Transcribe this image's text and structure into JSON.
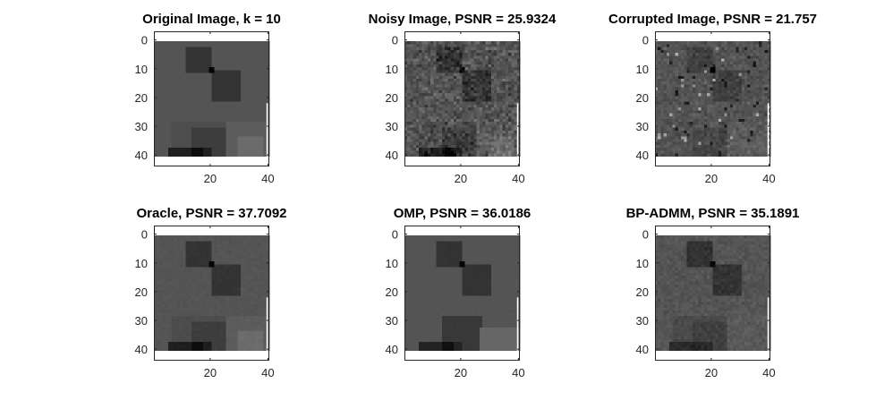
{
  "figure": {
    "background": "#ffffff",
    "colormap": "gray",
    "frame_color": "#262626"
  },
  "chart_data": [
    {
      "type": "heatmap",
      "id": "original",
      "title": "Original Image, k = 10",
      "xlim": [
        0.5,
        40.5
      ],
      "ylim": [
        -3,
        44
      ],
      "xticks": [
        20,
        40
      ],
      "yticks": [
        0,
        10,
        20,
        30,
        40
      ],
      "image_extent": [
        1,
        40,
        1,
        40
      ],
      "base_gray": 0.33,
      "blocks": [
        {
          "x": [
            12,
            20
          ],
          "y": [
            3,
            11
          ],
          "gray": 0.2
        },
        {
          "x": [
            21,
            30
          ],
          "y": [
            11,
            21
          ],
          "gray": 0.2
        },
        {
          "x": [
            7,
            27
          ],
          "y": [
            29,
            40
          ],
          "gray": 0.3
        },
        {
          "x": [
            14,
            30
          ],
          "y": [
            31,
            40
          ],
          "gray": 0.24
        },
        {
          "x": [
            26,
            40
          ],
          "y": [
            29,
            40
          ],
          "gray": 0.36
        },
        {
          "x": [
            30,
            38
          ],
          "y": [
            34,
            40
          ],
          "gray": 0.42
        },
        {
          "x": [
            6,
            20
          ],
          "y": [
            38,
            40
          ],
          "gray": 0.12
        },
        {
          "x": [
            14,
            17
          ],
          "y": [
            38,
            40
          ],
          "gray": 0.05
        },
        {
          "x": [
            20,
            21
          ],
          "y": [
            10,
            11
          ],
          "gray": 0.02
        }
      ],
      "noise": 0.0,
      "corruption": false
    },
    {
      "type": "heatmap",
      "id": "noisy",
      "title": "Noisy Image, PSNR = 25.9324",
      "xlim": [
        0.5,
        40.5
      ],
      "ylim": [
        -3,
        44
      ],
      "xticks": [
        20,
        40
      ],
      "yticks": [
        0,
        10,
        20,
        30,
        40
      ],
      "image_extent": [
        1,
        40,
        1,
        40
      ],
      "base_gray": 0.33,
      "blocks": [
        {
          "x": [
            12,
            20
          ],
          "y": [
            3,
            11
          ],
          "gray": 0.2
        },
        {
          "x": [
            21,
            30
          ],
          "y": [
            11,
            21
          ],
          "gray": 0.2
        },
        {
          "x": [
            7,
            27
          ],
          "y": [
            29,
            40
          ],
          "gray": 0.3
        },
        {
          "x": [
            14,
            30
          ],
          "y": [
            31,
            40
          ],
          "gray": 0.24
        },
        {
          "x": [
            26,
            40
          ],
          "y": [
            29,
            40
          ],
          "gray": 0.36
        },
        {
          "x": [
            30,
            38
          ],
          "y": [
            34,
            40
          ],
          "gray": 0.42
        },
        {
          "x": [
            6,
            20
          ],
          "y": [
            38,
            40
          ],
          "gray": 0.12
        },
        {
          "x": [
            14,
            17
          ],
          "y": [
            38,
            40
          ],
          "gray": 0.05
        },
        {
          "x": [
            20,
            21
          ],
          "y": [
            10,
            11
          ],
          "gray": 0.02
        }
      ],
      "noise": 0.07,
      "corruption": false
    },
    {
      "type": "heatmap",
      "id": "corrupted",
      "title": "Corrupted Image, PSNR = 21.757",
      "xlim": [
        0.5,
        40.5
      ],
      "ylim": [
        -3,
        44
      ],
      "xticks": [
        20,
        40
      ],
      "yticks": [
        0,
        10,
        20,
        30,
        40
      ],
      "image_extent": [
        1,
        40,
        1,
        40
      ],
      "base_gray": 0.33,
      "blocks": [
        {
          "x": [
            12,
            20
          ],
          "y": [
            3,
            11
          ],
          "gray": 0.25
        },
        {
          "x": [
            21,
            30
          ],
          "y": [
            11,
            21
          ],
          "gray": 0.25
        },
        {
          "x": [
            7,
            27
          ],
          "y": [
            29,
            40
          ],
          "gray": 0.32
        },
        {
          "x": [
            14,
            30
          ],
          "y": [
            31,
            40
          ],
          "gray": 0.28
        },
        {
          "x": [
            26,
            40
          ],
          "y": [
            29,
            40
          ],
          "gray": 0.36
        },
        {
          "x": [
            20,
            21
          ],
          "y": [
            10,
            11
          ],
          "gray": 0.02
        }
      ],
      "noise": 0.04,
      "corruption": true
    },
    {
      "type": "heatmap",
      "id": "oracle",
      "title": "Oracle, PSNR = 37.7092",
      "xlim": [
        0.5,
        40.5
      ],
      "ylim": [
        -3,
        44
      ],
      "xticks": [
        20,
        40
      ],
      "yticks": [
        0,
        10,
        20,
        30,
        40
      ],
      "image_extent": [
        1,
        40,
        1,
        40
      ],
      "base_gray": 0.33,
      "blocks": [
        {
          "x": [
            12,
            20
          ],
          "y": [
            3,
            11
          ],
          "gray": 0.2
        },
        {
          "x": [
            21,
            30
          ],
          "y": [
            11,
            21
          ],
          "gray": 0.2
        },
        {
          "x": [
            7,
            27
          ],
          "y": [
            29,
            40
          ],
          "gray": 0.3
        },
        {
          "x": [
            14,
            30
          ],
          "y": [
            31,
            40
          ],
          "gray": 0.24
        },
        {
          "x": [
            26,
            40
          ],
          "y": [
            29,
            40
          ],
          "gray": 0.36
        },
        {
          "x": [
            30,
            38
          ],
          "y": [
            34,
            40
          ],
          "gray": 0.42
        },
        {
          "x": [
            6,
            20
          ],
          "y": [
            38,
            40
          ],
          "gray": 0.12
        },
        {
          "x": [
            14,
            17
          ],
          "y": [
            38,
            40
          ],
          "gray": 0.05
        },
        {
          "x": [
            20,
            21
          ],
          "y": [
            10,
            11
          ],
          "gray": 0.02
        }
      ],
      "noise": 0.008,
      "corruption": false
    },
    {
      "type": "heatmap",
      "id": "omp",
      "title": "OMP, PSNR = 36.0186",
      "xlim": [
        0.5,
        40.5
      ],
      "ylim": [
        -3,
        44
      ],
      "xticks": [
        20,
        40
      ],
      "yticks": [
        0,
        10,
        20,
        30,
        40
      ],
      "image_extent": [
        1,
        40,
        1,
        40
      ],
      "base_gray": 0.33,
      "blocks": [
        {
          "x": [
            12,
            20
          ],
          "y": [
            3,
            11
          ],
          "gray": 0.2
        },
        {
          "x": [
            21,
            30
          ],
          "y": [
            11,
            21
          ],
          "gray": 0.2
        },
        {
          "x": [
            14,
            27
          ],
          "y": [
            29,
            40
          ],
          "gray": 0.22
        },
        {
          "x": [
            27,
            40
          ],
          "y": [
            33,
            40
          ],
          "gray": 0.4
        },
        {
          "x": [
            6,
            20
          ],
          "y": [
            38,
            40
          ],
          "gray": 0.14
        },
        {
          "x": [
            14,
            17
          ],
          "y": [
            38,
            40
          ],
          "gray": 0.06
        },
        {
          "x": [
            20,
            21
          ],
          "y": [
            10,
            11
          ],
          "gray": 0.02
        }
      ],
      "noise": 0.004,
      "corruption": false
    },
    {
      "type": "heatmap",
      "id": "bpadmm",
      "title": "BP-ADMM, PSNR = 35.1891",
      "xlim": [
        0.5,
        40.5
      ],
      "ylim": [
        -3,
        44
      ],
      "xticks": [
        20,
        40
      ],
      "yticks": [
        0,
        10,
        20,
        30,
        40
      ],
      "image_extent": [
        1,
        40,
        1,
        40
      ],
      "base_gray": 0.33,
      "blocks": [
        {
          "x": [
            12,
            20
          ],
          "y": [
            3,
            11
          ],
          "gray": 0.2
        },
        {
          "x": [
            21,
            30
          ],
          "y": [
            11,
            21
          ],
          "gray": 0.2
        },
        {
          "x": [
            7,
            27
          ],
          "y": [
            29,
            40
          ],
          "gray": 0.29
        },
        {
          "x": [
            14,
            30
          ],
          "y": [
            31,
            40
          ],
          "gray": 0.25
        },
        {
          "x": [
            26,
            40
          ],
          "y": [
            29,
            40
          ],
          "gray": 0.35
        },
        {
          "x": [
            6,
            20
          ],
          "y": [
            38,
            40
          ],
          "gray": 0.16
        },
        {
          "x": [
            20,
            21
          ],
          "y": [
            10,
            11
          ],
          "gray": 0.02
        }
      ],
      "noise": 0.025,
      "corruption": false
    }
  ]
}
